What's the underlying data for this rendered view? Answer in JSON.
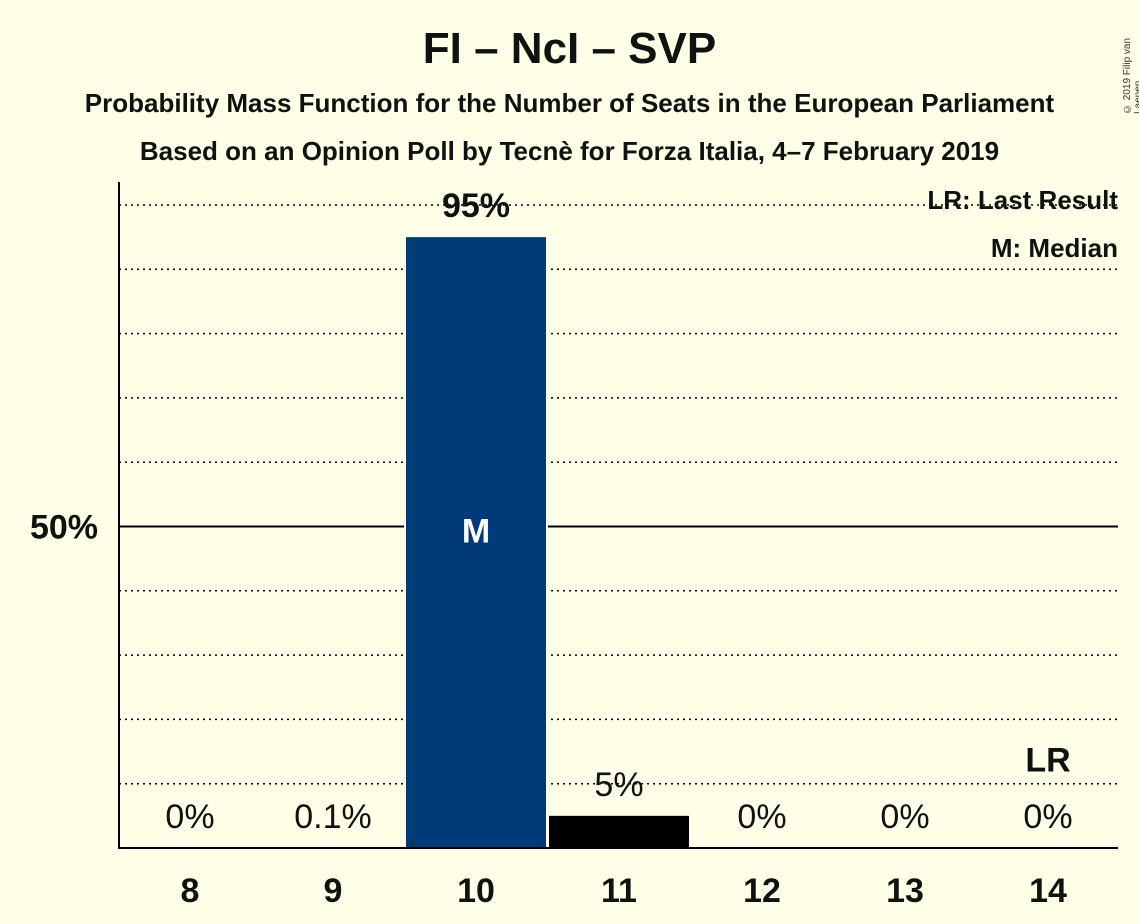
{
  "title": "FI – NcI – SVP",
  "subtitle": "Probability Mass Function for the Number of Seats in the European Parliament",
  "subtitle2": "Based on an Opinion Poll by Tecnè for Forza Italia, 4–7 February 2019",
  "copyright": "© 2019 Filip van Laenen",
  "legend": {
    "last_result": "LR: Last Result",
    "median": "M: Median"
  },
  "chart_data": {
    "type": "bar",
    "categories": [
      "8",
      "9",
      "10",
      "11",
      "12",
      "13",
      "14"
    ],
    "values": [
      0,
      0.1,
      95,
      5,
      0,
      0,
      0
    ],
    "data_labels": [
      "0%",
      "0.1%",
      "95%",
      "5%",
      "0%",
      "0%",
      "0%"
    ],
    "ylim": [
      0,
      103
    ],
    "y_tick_label": "50%",
    "y_tick_value": 50,
    "gridline_step": 10,
    "median_category": "10",
    "median_marker": "M",
    "last_result_category": "14",
    "last_result_marker": "LR",
    "colors": {
      "median_bar": "#003A78",
      "other_bar": "#000000",
      "background": "#FFFEE6"
    },
    "legend_position": "top-right"
  }
}
